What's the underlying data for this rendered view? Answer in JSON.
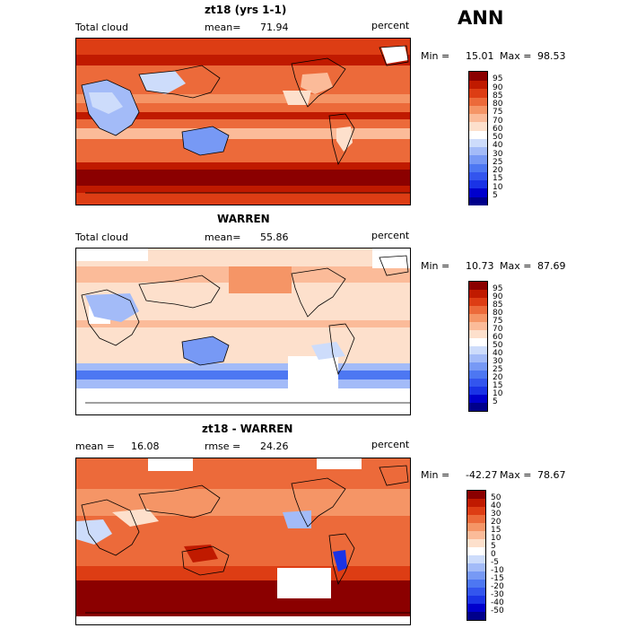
{
  "season": "ANN",
  "panels": [
    {
      "title": "zt18 (yrs 1-1)",
      "left_label": "Total cloud",
      "mid_label": "mean=",
      "mid_value": "71.94",
      "units": "percent",
      "min_label": "Min =",
      "min_value": "15.01",
      "max_label": "Max =",
      "max_value": "98.53"
    },
    {
      "title": "WARREN",
      "left_label": "Total cloud",
      "mid_label": "mean=",
      "mid_value": "55.86",
      "units": "percent",
      "min_label": "Min =",
      "min_value": "10.73",
      "max_label": "Max =",
      "max_value": "87.69"
    },
    {
      "title": "zt18 - WARREN",
      "left_label": "mean =",
      "left_value": "16.08",
      "mid_label": "rmse =",
      "mid_value": "24.26",
      "units": "percent",
      "min_label": "Min =",
      "min_value": "-42.27",
      "max_label": "Max =",
      "max_value": "78.67"
    }
  ],
  "chart_data": [
    {
      "type": "heatmap",
      "title": "zt18 (yrs 1-1)",
      "variable": "Total cloud",
      "units": "percent",
      "mean": 71.94,
      "min": 15.01,
      "max": 98.53,
      "colorbar": {
        "levels": [
          5,
          10,
          15,
          20,
          25,
          30,
          40,
          50,
          60,
          70,
          75,
          80,
          85,
          90,
          95
        ],
        "colors": [
          "#00008b",
          "#0000cd",
          "#1a33e6",
          "#3355ee",
          "#4d77f2",
          "#7799f5",
          "#a3bbf8",
          "#cddcfb",
          "#ffffff",
          "#fde0cc",
          "#fbbb99",
          "#f59566",
          "#ec6a3a",
          "#dd3d14",
          "#c01a00",
          "#8b0000"
        ]
      }
    },
    {
      "type": "heatmap",
      "title": "WARREN",
      "variable": "Total cloud",
      "units": "percent",
      "mean": 55.86,
      "min": 10.73,
      "max": 87.69,
      "colorbar": {
        "levels": [
          5,
          10,
          15,
          20,
          25,
          30,
          40,
          50,
          60,
          70,
          75,
          80,
          85,
          90,
          95
        ],
        "colors": [
          "#00008b",
          "#0000cd",
          "#1a33e6",
          "#3355ee",
          "#4d77f2",
          "#7799f5",
          "#a3bbf8",
          "#cddcfb",
          "#ffffff",
          "#fde0cc",
          "#fbbb99",
          "#f59566",
          "#ec6a3a",
          "#dd3d14",
          "#c01a00",
          "#8b0000"
        ]
      }
    },
    {
      "type": "heatmap",
      "title": "zt18 - WARREN",
      "units": "percent",
      "mean": 16.08,
      "rmse": 24.26,
      "min": -42.27,
      "max": 78.67,
      "colorbar": {
        "levels": [
          -50,
          -40,
          -30,
          -20,
          -15,
          -10,
          -5,
          0,
          5,
          10,
          15,
          20,
          30,
          40,
          50
        ],
        "colors": [
          "#00008b",
          "#0000cd",
          "#1a33e6",
          "#3355ee",
          "#4d77f2",
          "#7799f5",
          "#a3bbf8",
          "#cddcfb",
          "#ffffff",
          "#fde0cc",
          "#fbbb99",
          "#f59566",
          "#ec6a3a",
          "#dd3d14",
          "#c01a00",
          "#8b0000"
        ]
      }
    }
  ]
}
